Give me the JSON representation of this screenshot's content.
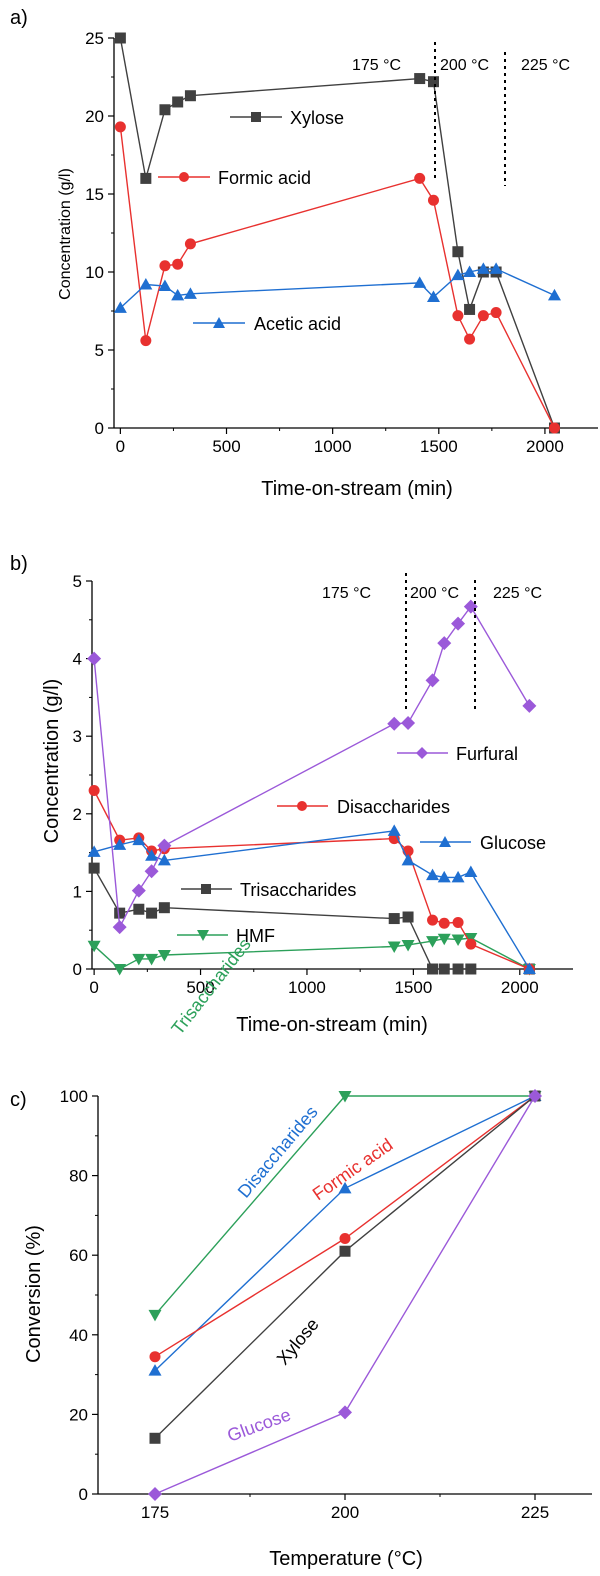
{
  "chart_data": [
    {
      "panel_label": "a)",
      "type": "line",
      "xlabel": "Time-on-stream (min)",
      "ylabel": "Concentration (g/l)",
      "xlim": [
        -30,
        2250
      ],
      "ylim": [
        0,
        25
      ],
      "xticks": [
        0,
        500,
        1000,
        1500,
        2000
      ],
      "yticks": [
        0,
        5,
        10,
        15,
        20,
        25
      ],
      "legend": "inline labels",
      "temperature_labels": [
        "175 °C",
        "200 °C",
        "225 °C"
      ],
      "temperature_dividers": [
        1490,
        1810
      ],
      "series": [
        {
          "name": "Xylose",
          "color": "#404040",
          "marker": "square",
          "x": [
            0,
            120,
            210,
            270,
            330,
            1410,
            1475,
            1590,
            1645,
            1710,
            1770,
            2045
          ],
          "y": [
            25.0,
            16.0,
            20.4,
            20.9,
            21.3,
            22.4,
            22.2,
            11.3,
            7.6,
            10.0,
            10.0,
            0
          ]
        },
        {
          "name": "Formic acid",
          "color": "#e8312f",
          "marker": "circle",
          "x": [
            0,
            120,
            210,
            270,
            330,
            1410,
            1475,
            1590,
            1645,
            1710,
            1770,
            2045
          ],
          "y": [
            19.3,
            5.6,
            10.4,
            10.5,
            11.8,
            16.0,
            14.6,
            7.2,
            5.7,
            7.2,
            7.4,
            0
          ]
        },
        {
          "name": "Acetic acid",
          "color": "#1f6fd1",
          "marker": "triangle-up",
          "x": [
            0,
            120,
            210,
            270,
            330,
            1410,
            1475,
            1590,
            1645,
            1710,
            1770,
            2045
          ],
          "y": [
            7.7,
            9.2,
            9.1,
            8.5,
            8.6,
            9.3,
            8.4,
            9.8,
            10.0,
            10.2,
            10.2,
            8.5
          ]
        }
      ]
    },
    {
      "panel_label": "b)",
      "type": "line",
      "xlabel": "Time-on-stream (min)",
      "ylabel": "Concentration (g/l)",
      "xlim": [
        -10,
        2250
      ],
      "ylim": [
        0,
        5
      ],
      "xticks": [
        0,
        500,
        1000,
        1500,
        2000
      ],
      "yticks": [
        0,
        1,
        2,
        3,
        4,
        5
      ],
      "legend": "inline labels",
      "temperature_labels": [
        "175 °C",
        "200 °C",
        "225 °C"
      ],
      "temperature_dividers": [
        1475,
        1785
      ],
      "series": [
        {
          "name": "Trisaccharides",
          "color": "#404040",
          "marker": "square",
          "x": [
            0,
            120,
            210,
            270,
            330,
            1410,
            1475,
            1590,
            1645,
            1710,
            1770,
            2045
          ],
          "y": [
            1.3,
            0.72,
            0.77,
            0.72,
            0.79,
            0.65,
            0.67,
            0,
            0,
            0,
            0,
            0
          ]
        },
        {
          "name": "HMF",
          "color": "#2ca05a",
          "marker": "triangle-down",
          "x": [
            0,
            120,
            210,
            270,
            330,
            1410,
            1475,
            1590,
            1645,
            1710,
            1770,
            2045
          ],
          "y": [
            0.3,
            0.0,
            0.13,
            0.13,
            0.18,
            0.29,
            0.31,
            0.36,
            0.39,
            0.38,
            0.4,
            0.0
          ]
        },
        {
          "name": "Disaccharides",
          "color": "#e8312f",
          "marker": "circle",
          "x": [
            0,
            120,
            210,
            270,
            330,
            1410,
            1475,
            1590,
            1645,
            1710,
            1770,
            2045
          ],
          "y": [
            2.3,
            1.66,
            1.69,
            1.52,
            1.55,
            1.68,
            1.52,
            0.63,
            0.59,
            0.6,
            0.32,
            0.0
          ]
        },
        {
          "name": "Glucose",
          "color": "#1f6fd1",
          "marker": "triangle-up",
          "x": [
            0,
            120,
            210,
            270,
            330,
            1410,
            1475,
            1590,
            1645,
            1710,
            1770,
            2045
          ],
          "y": [
            1.51,
            1.6,
            1.66,
            1.46,
            1.4,
            1.78,
            1.4,
            1.21,
            1.18,
            1.18,
            1.25,
            0.0
          ]
        },
        {
          "name": "Furfural",
          "color": "#9b59d9",
          "marker": "diamond",
          "x": [
            0,
            120,
            210,
            270,
            330,
            1410,
            1475,
            1590,
            1645,
            1710,
            1770,
            2045
          ],
          "y": [
            4.0,
            0.54,
            1.01,
            1.26,
            1.59,
            3.16,
            3.17,
            3.72,
            4.2,
            4.45,
            4.67,
            3.39
          ]
        }
      ]
    },
    {
      "panel_label": "c)",
      "type": "line",
      "xlabel": "Temperature (°C)",
      "ylabel": "Conversion (%)",
      "xlim": [
        167.5,
        232.5
      ],
      "ylim": [
        0,
        100
      ],
      "xticks": [
        175,
        200,
        225
      ],
      "yticks": [
        0,
        20,
        40,
        60,
        80,
        100
      ],
      "legend": "inline labels along lines",
      "series": [
        {
          "name": "Trisaccharides",
          "color": "#2ca05a",
          "marker": "triangle-down",
          "x": [
            175,
            200,
            225
          ],
          "y": [
            45.0,
            100.0,
            100.0
          ]
        },
        {
          "name": "Disaccharides",
          "color": "#1f6fd1",
          "marker": "triangle-up",
          "x": [
            175,
            200,
            225
          ],
          "y": [
            31.0,
            76.8,
            100.0
          ]
        },
        {
          "name": "Formic acid",
          "color": "#e8312f",
          "marker": "circle",
          "x": [
            175,
            200,
            225
          ],
          "y": [
            34.5,
            64.2,
            100.0
          ]
        },
        {
          "name": "Xylose",
          "color": "#404040",
          "marker": "square",
          "x": [
            175,
            200,
            225
          ],
          "y": [
            14.0,
            61.0,
            100.0
          ]
        },
        {
          "name": "Glucose",
          "color": "#9b59d9",
          "marker": "diamond",
          "x": [
            175,
            200,
            225
          ],
          "y": [
            0.0,
            20.5,
            100.0
          ]
        }
      ]
    }
  ]
}
